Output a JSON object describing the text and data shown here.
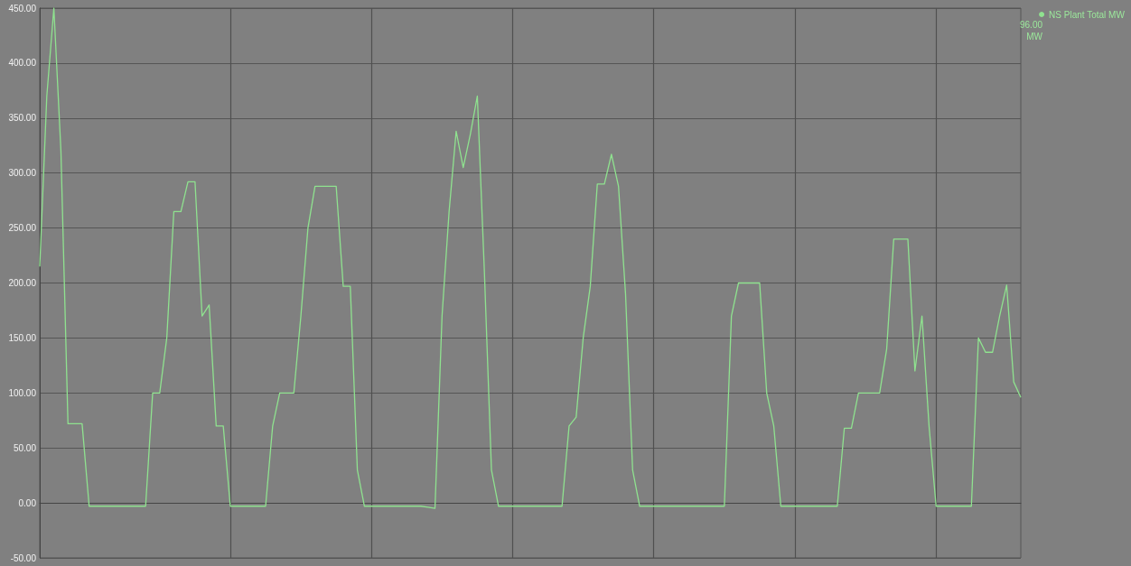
{
  "chart_data": {
    "type": "line",
    "categories": [
      null,
      null,
      null,
      null,
      null,
      null,
      null,
      null,
      null,
      null,
      null,
      null,
      null,
      null,
      null,
      null,
      null,
      null,
      null,
      null,
      null,
      null,
      null,
      null,
      null,
      null,
      null,
      null,
      null,
      null,
      null,
      null,
      null,
      null,
      null,
      null,
      null,
      null,
      null,
      null,
      null,
      null,
      null,
      null,
      null,
      null,
      null,
      null,
      null,
      null,
      null,
      null,
      null,
      null,
      null,
      null,
      null,
      null,
      null,
      null,
      null,
      null,
      null,
      null,
      null,
      null,
      null,
      null,
      null,
      null,
      null,
      null,
      null,
      null,
      null,
      null,
      null,
      null,
      null,
      null,
      null,
      null,
      null,
      null,
      null,
      null,
      null,
      null,
      null,
      null,
      null,
      null,
      null,
      null,
      null,
      null,
      null,
      null,
      null,
      null,
      null,
      null,
      null,
      null,
      null,
      null,
      null,
      null,
      null,
      null,
      null,
      null,
      null,
      null,
      null,
      null,
      null,
      null,
      null,
      null,
      null,
      null,
      null,
      null,
      null,
      null,
      null,
      null,
      null,
      null,
      null,
      null,
      null,
      null,
      null,
      null,
      null,
      null,
      null,
      null
    ],
    "series": [
      {
        "name": "NS Plant Total MW",
        "color": "#8fe28f",
        "values": [
          215,
          370,
          450,
          320,
          72,
          72,
          72,
          -3,
          -3,
          -3,
          -3,
          -3,
          -3,
          -3,
          -3,
          -3,
          100,
          100,
          150,
          265,
          265,
          292,
          292,
          170,
          180,
          70,
          70,
          -3,
          -3,
          -3,
          -3,
          -3,
          -3,
          70,
          100,
          100,
          100,
          170,
          250,
          288,
          288,
          288,
          288,
          197,
          197,
          30,
          -3,
          -3,
          -3,
          -3,
          -3,
          -3,
          -3,
          -3,
          -3,
          -4,
          -5,
          170,
          265,
          338,
          305,
          335,
          370,
          210,
          30,
          -3,
          -3,
          -3,
          -3,
          -3,
          -3,
          -3,
          -3,
          -3,
          -3,
          70,
          78,
          150,
          197,
          290,
          290,
          317,
          288,
          190,
          30,
          -3,
          -3,
          -3,
          -3,
          -3,
          -3,
          -3,
          -3,
          -3,
          -3,
          -3,
          -3,
          -3,
          170,
          200,
          200,
          200,
          200,
          100,
          70,
          -3,
          -3,
          -3,
          -3,
          -3,
          -3,
          -3,
          -3,
          -3,
          68,
          68,
          100,
          100,
          100,
          100,
          140,
          240,
          240,
          240,
          120,
          170,
          70,
          -3,
          -3,
          -3,
          -3,
          -3,
          -3,
          150,
          137,
          137,
          170,
          198,
          110,
          96
        ]
      }
    ],
    "ylim": [
      -50,
      450
    ],
    "yticks": [
      {
        "value": -50,
        "label": "-50.00"
      },
      {
        "value": 0,
        "label": "0.00"
      },
      {
        "value": 50,
        "label": "50.00"
      },
      {
        "value": 100,
        "label": "100.00"
      },
      {
        "value": 150,
        "label": "150.00"
      },
      {
        "value": 200,
        "label": "200.00"
      },
      {
        "value": 250,
        "label": "250.00"
      },
      {
        "value": 300,
        "label": "300.00"
      },
      {
        "value": 350,
        "label": "350.00"
      },
      {
        "value": 400,
        "label": "400.00"
      },
      {
        "value": 450,
        "label": "450.00"
      }
    ],
    "tick_labels": "y",
    "grid": true,
    "legend": "top right",
    "annotations": [
      "96.00",
      "MW"
    ]
  }
}
